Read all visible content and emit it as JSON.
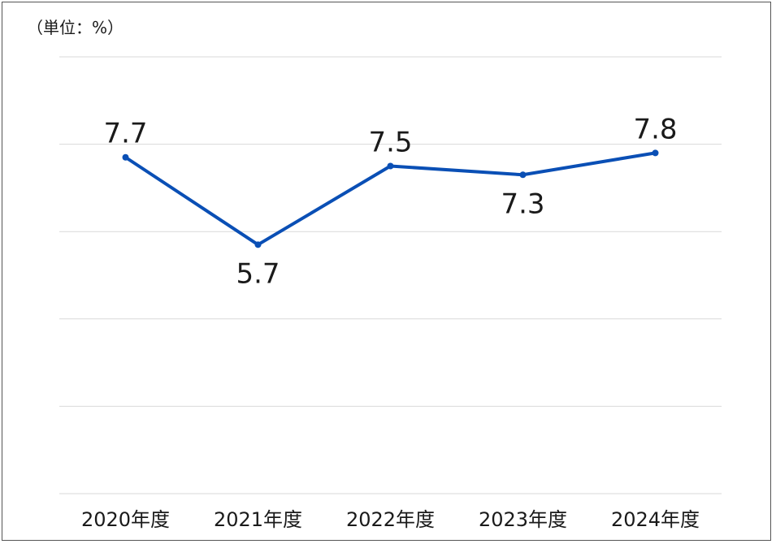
{
  "chart_data": {
    "type": "line",
    "unit_label": "（単位：%）",
    "categories": [
      "2020年度",
      "2021年度",
      "2022年度",
      "2023年度",
      "2024年度"
    ],
    "series": [
      {
        "values": [
          7.7,
          5.7,
          7.5,
          7.3,
          7.8
        ],
        "labels": [
          "7.7",
          "5.7",
          "7.5",
          "7.3",
          "7.8"
        ],
        "color": "#0a4fb5"
      }
    ],
    "ylim": [
      0,
      10
    ],
    "grid": true,
    "legend": "none"
  }
}
